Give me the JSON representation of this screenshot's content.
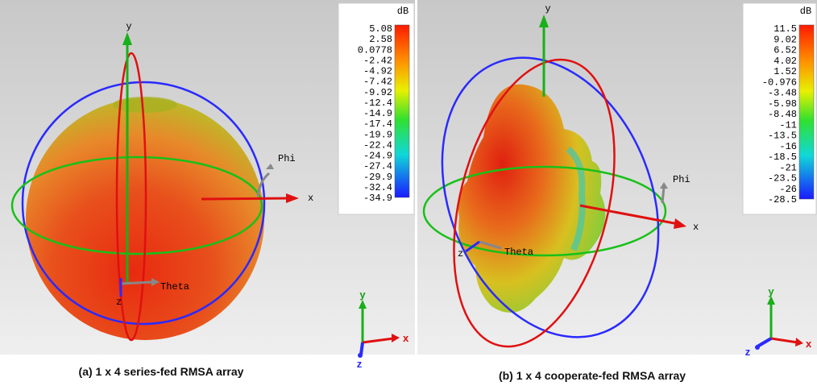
{
  "panels": [
    {
      "colorbar": {
        "unit": "dB",
        "labels": [
          "5.08",
          "2.58",
          "0.0778",
          "-2.42",
          "-4.92",
          "-7.42",
          "-9.92",
          "-12.4",
          "-14.9",
          "-17.4",
          "-19.9",
          "-22.4",
          "-24.9",
          "-27.4",
          "-29.9",
          "-32.4",
          "-34.9"
        ]
      },
      "axes": {
        "y": "y",
        "x": "x",
        "phi": "Phi",
        "theta": "Theta",
        "z": "z"
      },
      "triad": {
        "y": "y",
        "x": "x",
        "z": "z"
      },
      "caption": "(a) 1 x 4 series-fed RMSA array"
    },
    {
      "colorbar": {
        "unit": "dB",
        "labels": [
          "11.5",
          "9.02",
          "6.52",
          "4.02",
          "1.52",
          "-0.976",
          "-3.48",
          "-5.98",
          "-8.48",
          "-11",
          "-13.5",
          "-16",
          "-18.5",
          "-21",
          "-23.5",
          "-26",
          "-28.5"
        ]
      },
      "axes": {
        "y": "y",
        "x": "x",
        "phi": "Phi",
        "theta": "Theta",
        "z": "z"
      },
      "triad": {
        "y": "y",
        "x": "x",
        "z": "z"
      },
      "caption": "(b) 1 x 4 cooperate-fed RMSA array"
    }
  ]
}
